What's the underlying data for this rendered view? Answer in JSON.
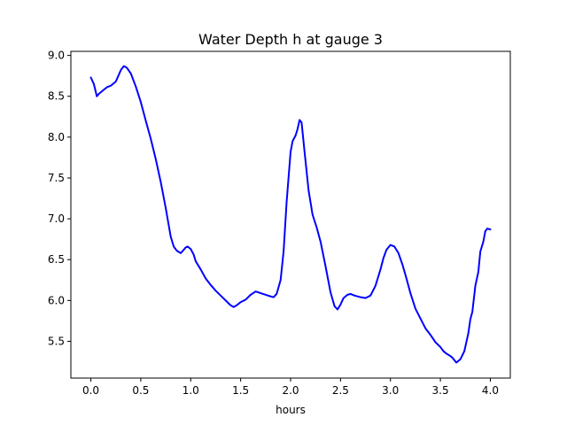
{
  "chart_data": {
    "type": "line",
    "title": "Water Depth h at gauge 3",
    "xlabel": "hours",
    "ylabel": "",
    "xlim": [
      -0.2,
      4.2
    ],
    "ylim": [
      5.05,
      9.05
    ],
    "grid": false,
    "legend": "none",
    "xticks": [
      0.0,
      0.5,
      1.0,
      1.5,
      2.0,
      2.5,
      3.0,
      3.5,
      4.0
    ],
    "xtick_labels": [
      "0.0",
      "0.5",
      "1.0",
      "1.5",
      "2.0",
      "2.5",
      "3.0",
      "3.5",
      "4.0"
    ],
    "yticks": [
      5.5,
      6.0,
      6.5,
      7.0,
      7.5,
      8.0,
      8.5,
      9.0
    ],
    "ytick_labels": [
      "5.5",
      "6.0",
      "6.5",
      "7.0",
      "7.5",
      "8.0",
      "8.5",
      "9.0"
    ],
    "series": [
      {
        "color": "#0000ff",
        "x": [
          0.0,
          0.03,
          0.06,
          0.08,
          0.12,
          0.16,
          0.2,
          0.25,
          0.3,
          0.33,
          0.36,
          0.4,
          0.45,
          0.5,
          0.55,
          0.6,
          0.65,
          0.7,
          0.75,
          0.8,
          0.83,
          0.86,
          0.9,
          0.93,
          0.95,
          0.97,
          1.0,
          1.03,
          1.05,
          1.1,
          1.15,
          1.2,
          1.25,
          1.3,
          1.35,
          1.4,
          1.43,
          1.46,
          1.5,
          1.55,
          1.6,
          1.65,
          1.7,
          1.75,
          1.8,
          1.83,
          1.86,
          1.9,
          1.93,
          1.96,
          2.0,
          2.02,
          2.05,
          2.07,
          2.09,
          2.11,
          2.14,
          2.18,
          2.22,
          2.26,
          2.3,
          2.35,
          2.4,
          2.44,
          2.47,
          2.5,
          2.53,
          2.57,
          2.6,
          2.64,
          2.7,
          2.75,
          2.8,
          2.85,
          2.9,
          2.93,
          2.96,
          3.0,
          3.04,
          3.08,
          3.12,
          3.16,
          3.2,
          3.25,
          3.3,
          3.35,
          3.4,
          3.45,
          3.5,
          3.53,
          3.56,
          3.6,
          3.62,
          3.64,
          3.66,
          3.7,
          3.74,
          3.78,
          3.8,
          3.82,
          3.85,
          3.88,
          3.9,
          3.93,
          3.95,
          3.97,
          4.0
        ],
        "y": [
          8.73,
          8.65,
          8.5,
          8.53,
          8.57,
          8.61,
          8.63,
          8.68,
          8.82,
          8.87,
          8.85,
          8.78,
          8.62,
          8.43,
          8.2,
          7.98,
          7.73,
          7.45,
          7.13,
          6.78,
          6.66,
          6.61,
          6.58,
          6.62,
          6.65,
          6.66,
          6.63,
          6.56,
          6.48,
          6.38,
          6.27,
          6.19,
          6.12,
          6.06,
          6.0,
          5.94,
          5.92,
          5.94,
          5.98,
          6.01,
          6.07,
          6.11,
          6.09,
          6.07,
          6.05,
          6.04,
          6.08,
          6.25,
          6.6,
          7.2,
          7.82,
          7.95,
          8.02,
          8.1,
          8.21,
          8.18,
          7.82,
          7.35,
          7.05,
          6.9,
          6.72,
          6.42,
          6.1,
          5.93,
          5.89,
          5.95,
          6.03,
          6.07,
          6.08,
          6.06,
          6.04,
          6.03,
          6.06,
          6.18,
          6.38,
          6.52,
          6.62,
          6.68,
          6.66,
          6.58,
          6.44,
          6.27,
          6.09,
          5.9,
          5.78,
          5.66,
          5.58,
          5.49,
          5.43,
          5.38,
          5.35,
          5.32,
          5.3,
          5.27,
          5.24,
          5.28,
          5.38,
          5.6,
          5.77,
          5.86,
          6.18,
          6.35,
          6.6,
          6.72,
          6.85,
          6.88,
          6.87
        ]
      }
    ]
  }
}
